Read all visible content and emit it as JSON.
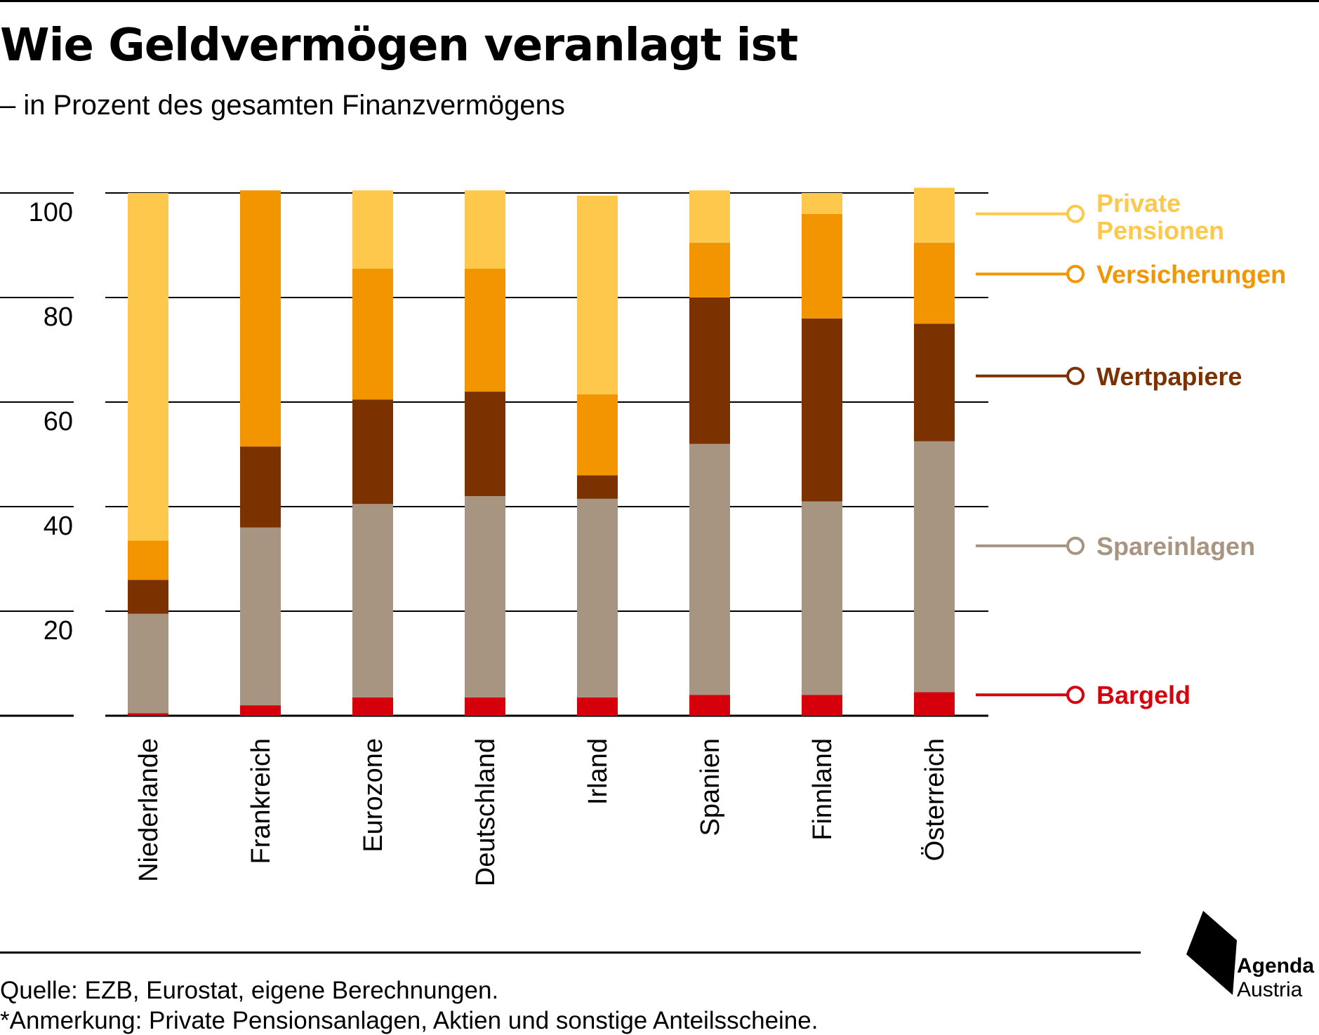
{
  "title": "Wie Geldvermögen veranlagt ist",
  "subtitle": "– in Prozent des gesamten Finanzvermögens",
  "chart_data": {
    "type": "bar",
    "stacked": true,
    "ylim": [
      0,
      100
    ],
    "yticks": [
      "20",
      "40",
      "60",
      "80",
      "100"
    ],
    "ytick_values": [
      20,
      40,
      60,
      80,
      100
    ],
    "grid": true,
    "legend_placement": "right",
    "categories": [
      "Niederlande",
      "Frankreich",
      "Eurozone",
      "Deutschland",
      "Irland",
      "Spanien",
      "Finnland",
      "Österreich"
    ],
    "series": [
      {
        "name": "Bargeld",
        "color": "#d6000c",
        "values": [
          0.5,
          2,
          3.5,
          3.5,
          3.5,
          4,
          4,
          4.5
        ]
      },
      {
        "name": "Spareinlagen",
        "color": "#a89581",
        "values": [
          19,
          34,
          37,
          38.5,
          38,
          48,
          37,
          48
        ]
      },
      {
        "name": "Wertpapiere",
        "color": "#7b3200",
        "values": [
          6.5,
          15.5,
          20,
          20,
          4.5,
          28,
          35,
          22.5
        ]
      },
      {
        "name": "Versicherungen",
        "color": "#f29500",
        "values": [
          7.5,
          49,
          25,
          23.5,
          15.5,
          10.5,
          20,
          15.5
        ]
      },
      {
        "name": "Private Pensionen",
        "color": "#fec84d",
        "values": [
          66.5,
          0,
          15,
          15,
          38,
          10,
          4,
          10.5
        ]
      }
    ],
    "legend": [
      {
        "line1": "Private",
        "line2": "Pensionen",
        "color": "#fec84d",
        "value": 96
      },
      {
        "line1": "Versicherungen",
        "line2": "",
        "color": "#f29500",
        "value": 84.5
      },
      {
        "line1": "Wertpapiere",
        "line2": "",
        "color": "#7b3200",
        "value": 65
      },
      {
        "line1": "Spareinlagen",
        "line2": "",
        "color": "#a89581",
        "value": 32.5
      },
      {
        "line1": "Bargeld",
        "line2": "",
        "color": "#d6000c",
        "value": 4
      }
    ]
  },
  "footer": {
    "source": "Quelle: EZB, Eurostat, eigene Berechnungen.",
    "note": "*Anmerkung: Private Pensionsanlagen, Aktien und sonstige Anteilsscheine."
  },
  "logo": {
    "name": "Agenda",
    "country": "Austria",
    "icon": "agenda-austria-logo-icon"
  }
}
